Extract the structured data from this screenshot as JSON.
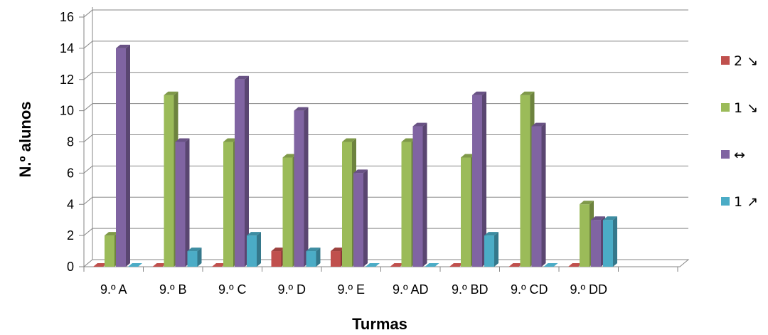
{
  "chart_data": {
    "type": "bar",
    "title": "",
    "xlabel": "Turmas",
    "ylabel": "N.º alunos",
    "ylim": [
      0,
      16
    ],
    "yticks": [
      0,
      2,
      4,
      6,
      8,
      10,
      12,
      14,
      16
    ],
    "grid": true,
    "legend_position": "right",
    "categories": [
      "9.º A",
      "9.º B",
      "9.º C",
      "9.º D",
      "9.º E",
      "9.º AD",
      "9.º BD",
      "9.º CD",
      "9.º DD"
    ],
    "series": [
      {
        "name": "2 ↘",
        "color": "#C0504D",
        "values": [
          0,
          0,
          0,
          1,
          1,
          0,
          0,
          0,
          0
        ]
      },
      {
        "name": "1 ↘",
        "color": "#9BBB59",
        "values": [
          2,
          11,
          8,
          7,
          8,
          8,
          7,
          11,
          4
        ]
      },
      {
        "name": "↔",
        "color": "#8064A2",
        "values": [
          14,
          8,
          12,
          10,
          6,
          9,
          11,
          9,
          3
        ]
      },
      {
        "name": "1 ↗",
        "color": "#4BACC6",
        "values": [
          0,
          1,
          2,
          1,
          0,
          0,
          2,
          0,
          3
        ]
      }
    ]
  }
}
